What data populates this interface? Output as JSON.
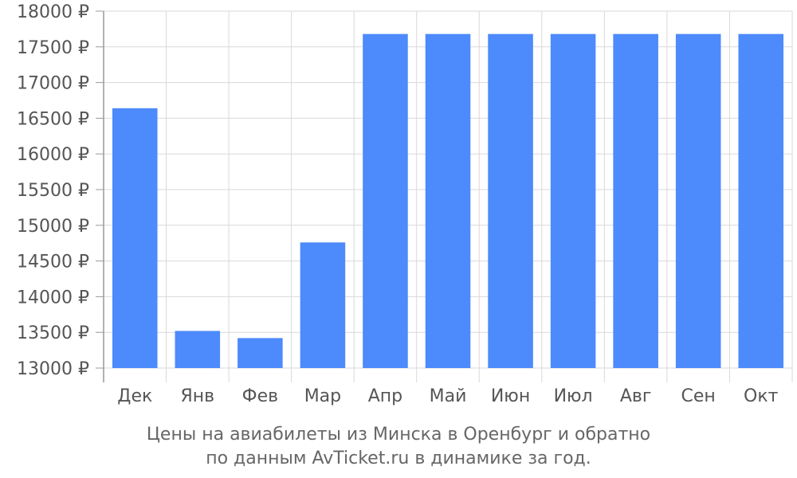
{
  "chart_data": {
    "type": "bar",
    "title": "",
    "xlabel": "",
    "ylabel": "",
    "categories": [
      "Дек",
      "Янв",
      "Фев",
      "Мар",
      "Апр",
      "Май",
      "Июн",
      "Июл",
      "Авг",
      "Сен",
      "Окт"
    ],
    "values": [
      16640,
      13520,
      13420,
      14760,
      17680,
      17680,
      17680,
      17680,
      17680,
      17680,
      17680
    ],
    "ylim": [
      13000,
      18000
    ],
    "yticks": [
      13000,
      13500,
      14000,
      14500,
      15000,
      15500,
      16000,
      16500,
      17000,
      17500,
      18000
    ],
    "ytick_labels": [
      "13000 ₽",
      "13500 ₽",
      "14000 ₽",
      "14500 ₽",
      "15000 ₽",
      "15500 ₽",
      "16000 ₽",
      "16500 ₽",
      "17000 ₽",
      "17500 ₽",
      "18000 ₽"
    ],
    "bar_color": "#4d8afb",
    "grid": true,
    "grid_color": "#d9d9d9",
    "axis_color": "#999999",
    "legend": "none"
  },
  "caption": {
    "line1": "Цены на авиабилеты из Минска в Оренбург и обратно",
    "line2": "по данным AvTicket.ru в динамике за год."
  }
}
